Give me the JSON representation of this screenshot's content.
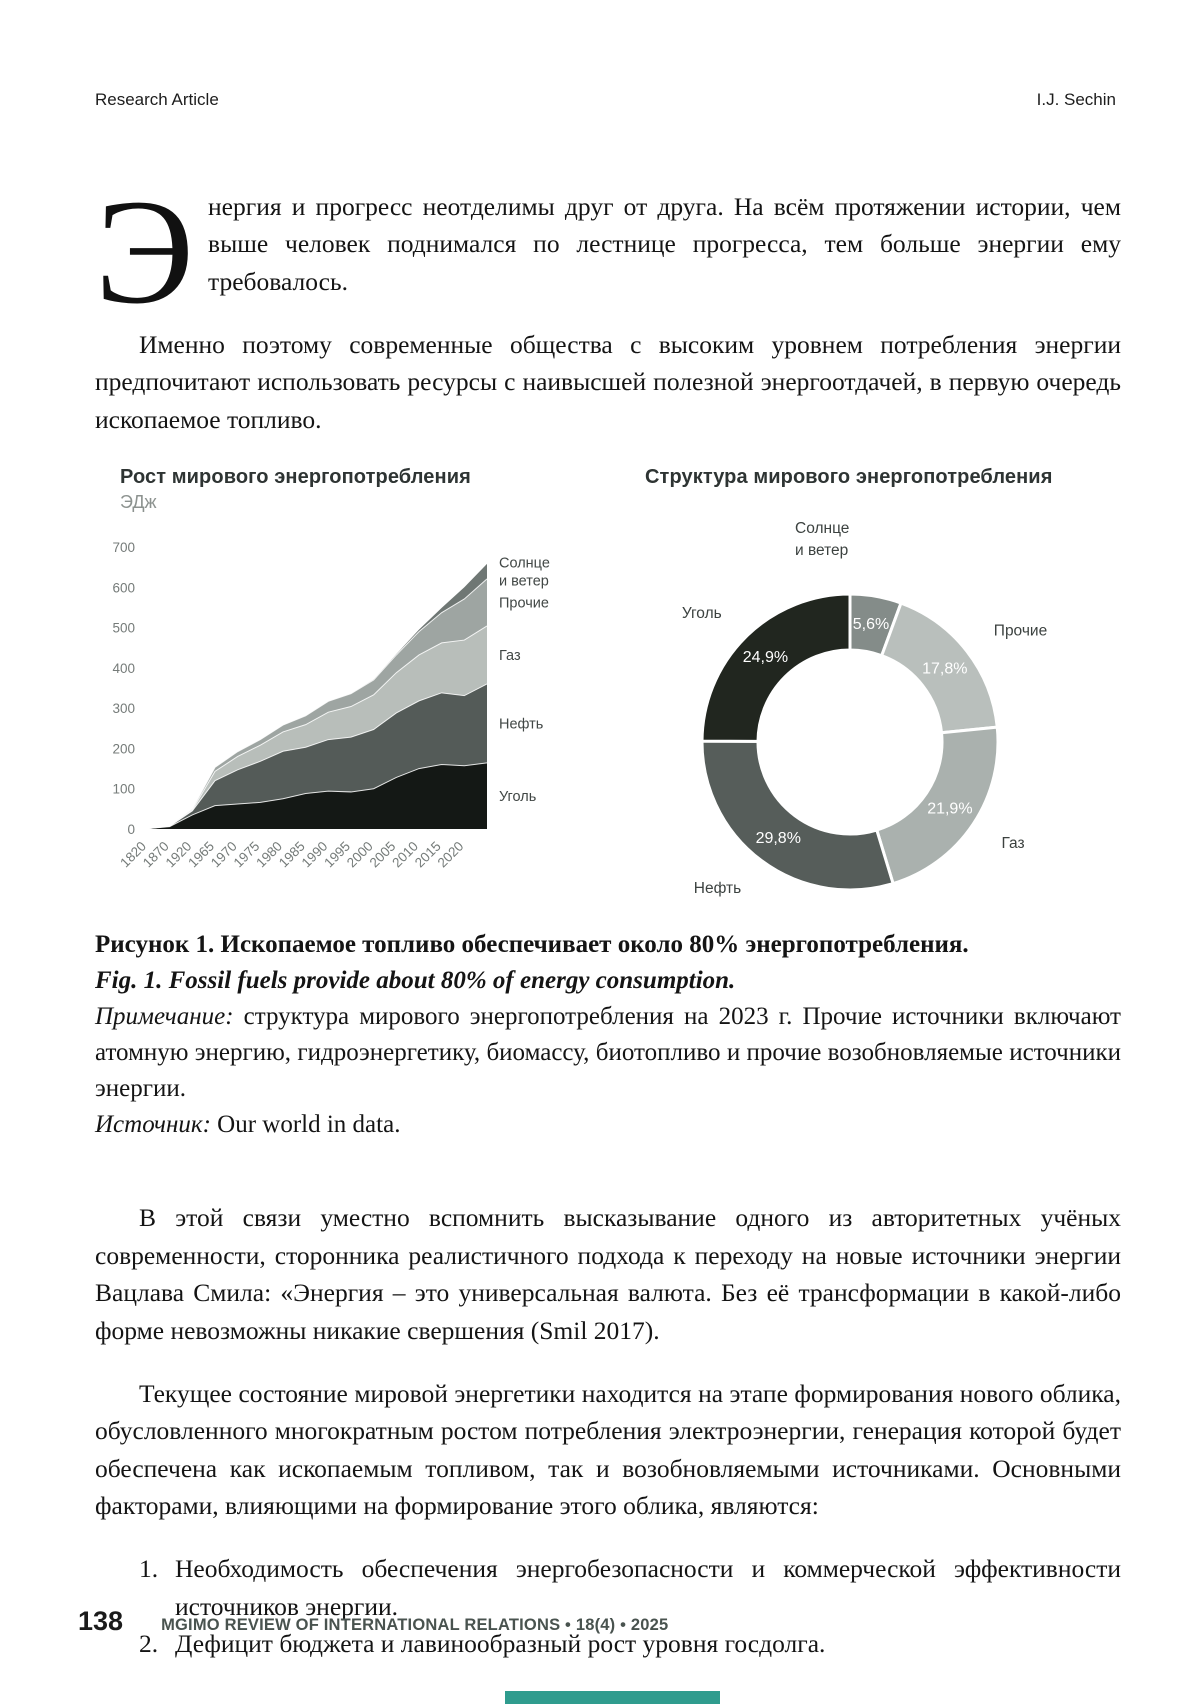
{
  "header": {
    "article_type": "Research Article",
    "author": "I.J. Sechin"
  },
  "paragraphs": {
    "dropcap": "Э",
    "p1": "нергия и прогресс неотделимы друг от друга. На всём протяжении истории, чем выше человек поднимался по лестнице прогресса, тем больше энергии ему требовалось.",
    "p2": "Именно поэтому современные общества с высоким уровнем потребления энергии предпочитают использовать ресурсы с наивысшей полезной энергоотдачей, в первую очередь ископаемое топливо.",
    "p3": "В этой связи уместно вспомнить высказывание одного из авторитетных учёных современности, сторонника реалистичного подхода к переходу на новые источники энергии Вацлава Смила: «Энергия – это универсальная валюта. Без её трансформации в какой-либо форме невозможны никакие свершения (Smil 2017).",
    "p4": "Текущее состояние мировой энергетики находится на этапе формирования нового облика, обусловленного многократным ростом потребления электроэнергии, генерация которой будет обеспечена как ископаемым топливом, так и возобновляемыми источниками. Основными факторами, влияющими на формирование этого облика, являются:"
  },
  "list": {
    "items": [
      {
        "num": "1.",
        "text": "Необходимость обеспечения энергобезопасности и коммерческой эффективности источников энергии."
      },
      {
        "num": "2.",
        "text": "Дефицит бюджета и лавинообразный рост уровня госдолга."
      }
    ]
  },
  "figure": {
    "caption_ru": "Рисунок 1. Ископаемое топливо обеспечивает около 80% энергопотребления.",
    "caption_en": "Fig. 1. Fossil fuels provide about 80% of energy consumption.",
    "note_label": "Примечание:",
    "note_text": " структура мирового энергопотребления на 2023 г. Прочие источники включают атомную энергию, гидроэнергетику, биомассу, биотопливо и прочие возобновляемые источники энергии.",
    "source_label": "Источник:",
    "source_text": " Our world in data."
  },
  "chart_data": [
    {
      "type": "area",
      "stacked": true,
      "title": "Рост мирового энергопотребления",
      "ylabel": "ЭДж",
      "ylim": [
        0,
        700
      ],
      "yticks": [
        0,
        100,
        200,
        300,
        400,
        500,
        600,
        700
      ],
      "grid": false,
      "legend_position": "right",
      "x": [
        "1820",
        "1870",
        "1920",
        "1965",
        "1970",
        "1975",
        "1980",
        "1985",
        "1990",
        "1995",
        "2000",
        "2005",
        "2010",
        "2015",
        "2020",
        "2023"
      ],
      "xticks": [
        "1820",
        "1870",
        "1920",
        "1965",
        "1970",
        "1975",
        "1980",
        "1985",
        "1990",
        "1995",
        "2000",
        "2005",
        "2010",
        "2015",
        "2020"
      ],
      "series": [
        {
          "name": "Уголь",
          "legend_lines": [
            "Уголь"
          ],
          "color": "#141815",
          "values": [
            1,
            6,
            35,
            58,
            62,
            66,
            75,
            88,
            94,
            92,
            100,
            128,
            150,
            160,
            157,
            164
          ]
        },
        {
          "name": "Нефть",
          "legend_lines": [
            "Нефть"
          ],
          "color": "#545b58",
          "values": [
            0,
            1,
            10,
            62,
            85,
            102,
            118,
            115,
            128,
            136,
            147,
            160,
            168,
            178,
            174,
            196
          ]
        },
        {
          "name": "Газ",
          "legend_lines": [
            "Газ"
          ],
          "color": "#b8beba",
          "values": [
            0,
            0,
            2,
            23,
            33,
            40,
            48,
            56,
            68,
            76,
            86,
            100,
            114,
            124,
            138,
            144
          ]
        },
        {
          "name": "Прочие",
          "legend_lines": [
            "Прочие"
          ],
          "color": "#9ea5a2",
          "values": [
            0,
            1,
            3,
            10,
            12,
            14,
            17,
            22,
            27,
            32,
            37,
            44,
            58,
            75,
            102,
            117
          ]
        },
        {
          "name": "Солнце и ветер",
          "legend_lines": [
            "Солнце",
            "и ветер"
          ],
          "color": "#6f7774",
          "values": [
            0,
            0,
            0,
            0,
            0,
            0,
            0,
            0,
            0,
            0,
            1,
            2,
            5,
            12,
            29,
            37
          ]
        }
      ]
    },
    {
      "type": "pie",
      "subtype": "donut",
      "title": "Структура мирового энергопотребления",
      "start_at": "top",
      "direction": "clockwise",
      "segments": [
        {
          "label": "Солнце и ветер",
          "label_lines": [
            "Солнце",
            "и ветер"
          ],
          "display": "5,6%",
          "value_pct": 5.6,
          "color": "#848c89"
        },
        {
          "label": "Прочие",
          "label_lines": [
            "Прочие"
          ],
          "display": "17,8%",
          "value_pct": 17.8,
          "color": "#b9bfbc"
        },
        {
          "label": "Газ",
          "label_lines": [
            "Газ"
          ],
          "display": "21,9%",
          "value_pct": 21.9,
          "color": "#aab1ae"
        },
        {
          "label": "Нефть",
          "label_lines": [
            "Нефть"
          ],
          "display": "29,8%",
          "value_pct": 29.8,
          "color": "#565d5a"
        },
        {
          "label": "Уголь",
          "label_lines": [
            "Уголь"
          ],
          "display": "24,9%",
          "value_pct": 24.9,
          "color": "#21261f"
        }
      ]
    }
  ],
  "footer": {
    "page_number": "138",
    "journal_line": "MGIMO REVIEW OF INTERNATIONAL RELATIONS  •  18(4) • 2025"
  },
  "colors": {
    "accent_teal": "#2f9c8e",
    "footer_text": "#49534f",
    "chart_tick": "#757b79"
  }
}
